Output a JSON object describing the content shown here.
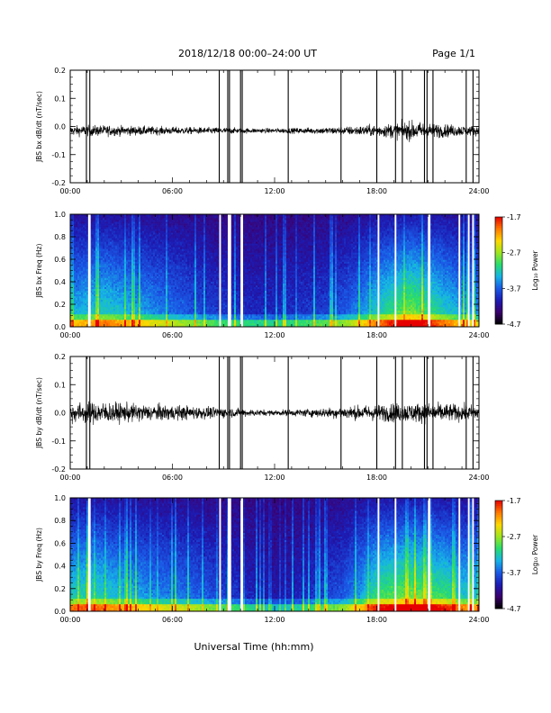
{
  "header": {
    "title": "2018/12/18   00:00–24:00 UT",
    "page": "Page 1/1"
  },
  "x_axis_title": "Universal Time (hh:mm)",
  "colorbar": {
    "title": "Log₁₀ Power",
    "ticks": [
      "-1.7",
      "-2.7",
      "-3.7",
      "-4.7"
    ],
    "range": [
      -4.7,
      -1.7
    ],
    "palette": [
      "#000000",
      "#3b006e",
      "#1c1cb4",
      "#1a5ae6",
      "#16b4e6",
      "#28dc6e",
      "#a0e61e",
      "#ffd700",
      "#ff7800",
      "#e60000"
    ]
  },
  "chart_data": [
    {
      "type": "line",
      "id": "bx-dbdt",
      "ylabel": "JBS bx dB/dt (nT/sec)",
      "xlim": [
        0,
        24
      ],
      "ylim": [
        -0.2,
        0.2
      ],
      "x_ticks": [
        "00:00",
        "06:00",
        "12:00",
        "18:00",
        "24:00"
      ],
      "y_ticks": [
        "0.2",
        "0.1",
        "0.0",
        "-0.1",
        "-0.2"
      ],
      "baseline": -0.015,
      "noise_amplitude_by_hour": [
        0.018,
        0.02,
        0.02,
        0.018,
        0.017,
        0.015,
        0.014,
        0.013,
        0.012,
        0.012,
        0.01,
        0.009,
        0.009,
        0.01,
        0.011,
        0.013,
        0.015,
        0.018,
        0.022,
        0.028,
        0.035,
        0.03,
        0.024,
        0.02,
        0.018
      ],
      "spikes_hours": [
        0.95,
        1.15,
        8.75,
        9.25,
        9.35,
        10.0,
        10.1,
        12.8,
        15.9,
        18.0,
        19.1,
        19.5,
        20.8,
        20.95,
        21.3,
        23.25,
        23.65
      ]
    },
    {
      "type": "heatmap",
      "id": "bx-spectrogram",
      "ylabel": "JBS bx Freq (Hz)",
      "xlim": [
        0,
        24
      ],
      "ylim": [
        0,
        1.0
      ],
      "x_ticks": [
        "00:00",
        "06:00",
        "12:00",
        "18:00",
        "24:00"
      ],
      "y_ticks": [
        "1.0",
        "0.8",
        "0.6",
        "0.4",
        "0.2",
        "0.0"
      ],
      "value_range": [
        -4.7,
        -1.7
      ],
      "activity_by_hour": [
        0.45,
        0.5,
        0.55,
        0.5,
        0.45,
        0.4,
        0.35,
        0.3,
        0.25,
        0.22,
        0.2,
        0.18,
        0.18,
        0.2,
        0.22,
        0.25,
        0.3,
        0.4,
        0.55,
        0.65,
        0.75,
        0.65,
        0.55,
        0.45,
        0.4
      ],
      "data_gaps_hours": [
        [
          1.05,
          1.2
        ],
        [
          8.75,
          8.85
        ],
        [
          9.25,
          9.45
        ],
        [
          10.0,
          10.15
        ],
        [
          18.05,
          18.15
        ],
        [
          19.05,
          19.15
        ],
        [
          21.0,
          21.15
        ],
        [
          22.8,
          22.9
        ],
        [
          23.35,
          23.45
        ],
        [
          23.6,
          23.7
        ]
      ]
    },
    {
      "type": "line",
      "id": "by-dbdt",
      "ylabel": "JBS by dB/dt (nT/sec)",
      "xlim": [
        0,
        24
      ],
      "ylim": [
        -0.2,
        0.2
      ],
      "x_ticks": [
        "00:00",
        "06:00",
        "12:00",
        "18:00",
        "24:00"
      ],
      "y_ticks": [
        "0.2",
        "0.1",
        "0.0",
        "-0.1",
        "-0.2"
      ],
      "baseline": 0.0,
      "noise_amplitude_by_hour": [
        0.035,
        0.04,
        0.04,
        0.035,
        0.032,
        0.03,
        0.028,
        0.025,
        0.022,
        0.02,
        0.015,
        0.012,
        0.01,
        0.012,
        0.015,
        0.018,
        0.022,
        0.026,
        0.03,
        0.034,
        0.036,
        0.036,
        0.034,
        0.03,
        0.028
      ],
      "spikes_hours": [
        0.95,
        1.15,
        8.75,
        9.25,
        9.35,
        10.0,
        10.1,
        12.8,
        15.9,
        18.0,
        19.1,
        19.5,
        20.8,
        20.95,
        21.3,
        23.25,
        23.65
      ]
    },
    {
      "type": "heatmap",
      "id": "by-spectrogram",
      "ylabel": "JBS by Freq (Hz)",
      "xlim": [
        0,
        24
      ],
      "ylim": [
        0,
        1.0
      ],
      "x_ticks": [
        "00:00",
        "06:00",
        "12:00",
        "18:00",
        "24:00"
      ],
      "y_ticks": [
        "1.0",
        "0.8",
        "0.6",
        "0.4",
        "0.2",
        "0.0"
      ],
      "value_range": [
        -4.7,
        -1.7
      ],
      "activity_by_hour": [
        0.55,
        0.6,
        0.55,
        0.5,
        0.45,
        0.4,
        0.38,
        0.35,
        0.3,
        0.25,
        0.2,
        0.15,
        0.12,
        0.15,
        0.2,
        0.25,
        0.3,
        0.45,
        0.65,
        0.7,
        0.75,
        0.7,
        0.65,
        0.55,
        0.5
      ],
      "data_gaps_hours": [
        [
          1.05,
          1.2
        ],
        [
          8.75,
          8.85
        ],
        [
          9.25,
          9.45
        ],
        [
          10.0,
          10.15
        ],
        [
          18.05,
          18.15
        ],
        [
          19.05,
          19.15
        ],
        [
          21.0,
          21.15
        ],
        [
          22.8,
          22.9
        ],
        [
          23.35,
          23.45
        ],
        [
          23.6,
          23.7
        ]
      ]
    }
  ]
}
